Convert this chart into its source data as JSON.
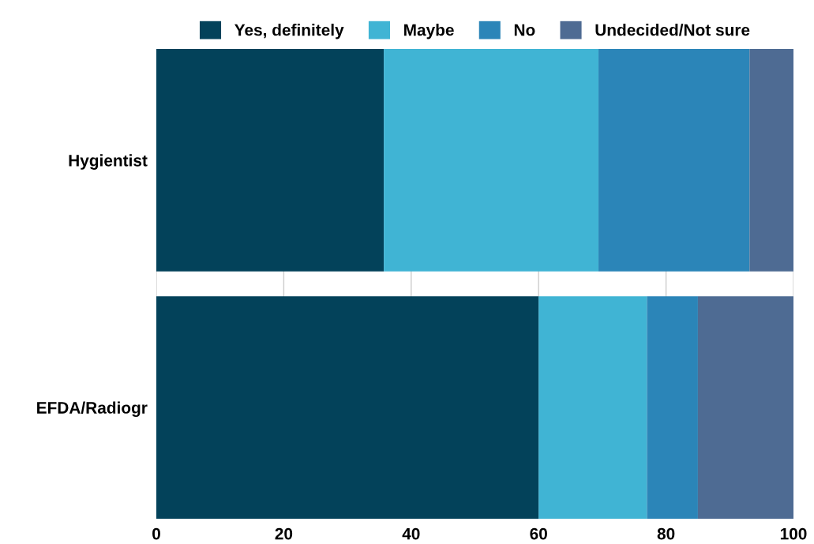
{
  "chart_data": {
    "type": "bar",
    "orientation": "horizontal",
    "stacked": true,
    "categories": [
      "Hygientist",
      "EFDA/Radiogr"
    ],
    "series": [
      {
        "name": "Yes, definitely",
        "color": "#03425a",
        "values": [
          35.7,
          60
        ]
      },
      {
        "name": "Maybe",
        "color": "#40b4d4",
        "values": [
          33.7,
          17
        ]
      },
      {
        "name": "No",
        "color": "#2b85b8",
        "values": [
          23.7,
          8
        ]
      },
      {
        "name": "Undecided/Not sure",
        "color": "#4e6b93",
        "values": [
          6.9,
          15
        ]
      }
    ],
    "xlim": [
      0,
      100
    ],
    "xticks": [
      0,
      20,
      40,
      60,
      80,
      100
    ],
    "grid": "x",
    "legend": "top"
  }
}
